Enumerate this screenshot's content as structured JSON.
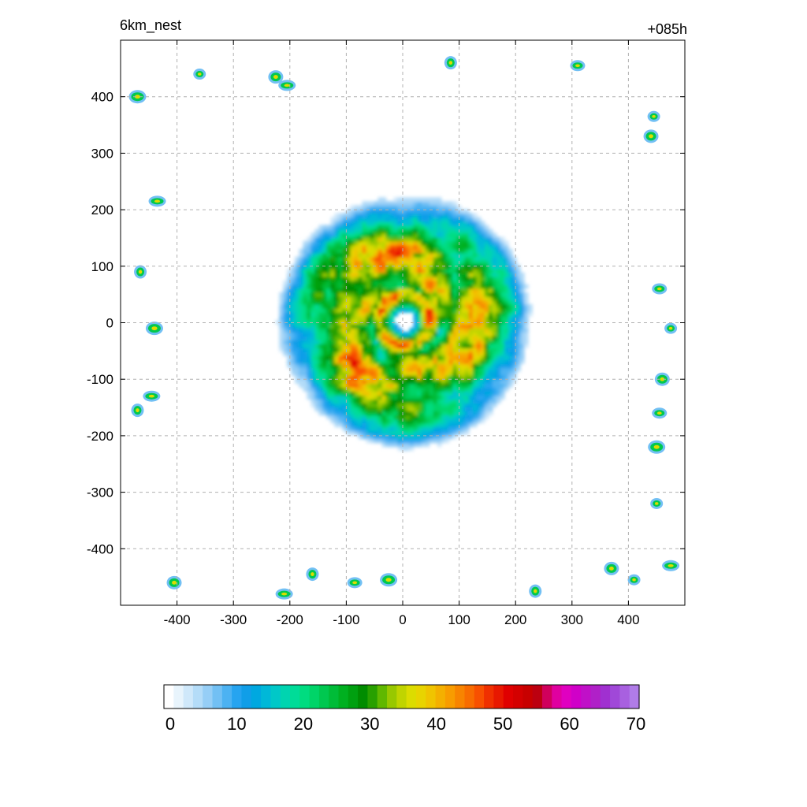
{
  "header": {
    "title_left": "6km_nest",
    "title_right": "+085h"
  },
  "chart_data": {
    "type": "heatmap",
    "title": "6km_nest",
    "subtitle": "+085h",
    "xlabel": "",
    "ylabel": "",
    "xlim": [
      -500,
      500
    ],
    "ylim": [
      -500,
      500
    ],
    "x_ticks": [
      -400,
      -300,
      -200,
      -100,
      0,
      100,
      200,
      300,
      400
    ],
    "y_ticks": [
      400,
      300,
      200,
      100,
      0,
      -100,
      -200,
      -300,
      -400
    ],
    "x_tick_labels": [
      "-400",
      "-300",
      "-200",
      "-100",
      "0",
      "100",
      "200",
      "300",
      "400"
    ],
    "y_tick_labels": [
      "400",
      "300",
      "200",
      "100",
      "0",
      "-100",
      "-200",
      "-300",
      "-400"
    ],
    "grid": true,
    "grid_style": "dashed",
    "colorbar": {
      "min": 0,
      "max": 70,
      "ticks": [
        0,
        10,
        20,
        30,
        40,
        50,
        60,
        70
      ],
      "tick_labels": [
        "0",
        "10",
        "20",
        "30",
        "40",
        "50",
        "60",
        "70"
      ],
      "orientation": "horizontal",
      "colors": [
        "#ffffff",
        "#e8f4fc",
        "#cfe8fa",
        "#b4dcf8",
        "#96cef6",
        "#72c0f4",
        "#4cb2f2",
        "#26a4f0",
        "#109ee8",
        "#00a8e0",
        "#00b8d8",
        "#00c8c8",
        "#00d4b0",
        "#00dc98",
        "#00dc80",
        "#00d468",
        "#00c850",
        "#00bc38",
        "#00b020",
        "#00a010",
        "#008c00",
        "#28a000",
        "#60b800",
        "#98c800",
        "#c0d400",
        "#dcdc00",
        "#e8d400",
        "#f0c400",
        "#f4b000",
        "#f89c00",
        "#f88400",
        "#f86c00",
        "#f85000",
        "#f03000",
        "#e81800",
        "#e00000",
        "#d40000",
        "#c80000",
        "#bc0010",
        "#d0005c",
        "#e000a0",
        "#e000c0",
        "#d000c8",
        "#c010c8",
        "#b020c8",
        "#a030d0",
        "#a048d8",
        "#a860e0",
        "#b07ce8"
      ]
    },
    "features": {
      "center": [
        0,
        0
      ],
      "eye_radius": 18,
      "rainbands": [
        {
          "center": [
            0,
            0
          ],
          "radius": 55,
          "max_value": 48
        },
        {
          "center": [
            -60,
            60
          ],
          "radius": 85,
          "max_value": 50
        },
        {
          "center": [
            70,
            -60
          ],
          "radius": 90,
          "max_value": 50
        },
        {
          "center": [
            -20,
            150
          ],
          "radius": 60,
          "max_value": 45
        },
        {
          "center": [
            150,
            20
          ],
          "radius": 70,
          "max_value": 45
        }
      ],
      "boundary_cells": [
        {
          "x": -360,
          "y": 440
        },
        {
          "x": -225,
          "y": 435
        },
        {
          "x": -205,
          "y": 420
        },
        {
          "x": 85,
          "y": 460
        },
        {
          "x": 310,
          "y": 455
        },
        {
          "x": -470,
          "y": 400
        },
        {
          "x": 445,
          "y": 365
        },
        {
          "x": 440,
          "y": 330
        },
        {
          "x": -435,
          "y": 215
        },
        {
          "x": -465,
          "y": 90
        },
        {
          "x": 455,
          "y": 60
        },
        {
          "x": -440,
          "y": -10
        },
        {
          "x": 475,
          "y": -10
        },
        {
          "x": 460,
          "y": -100
        },
        {
          "x": -445,
          "y": -130
        },
        {
          "x": -470,
          "y": -155
        },
        {
          "x": 455,
          "y": -160
        },
        {
          "x": 450,
          "y": -220
        },
        {
          "x": 450,
          "y": -320
        },
        {
          "x": -405,
          "y": -460
        },
        {
          "x": -210,
          "y": -480
        },
        {
          "x": -160,
          "y": -445
        },
        {
          "x": -85,
          "y": -460
        },
        {
          "x": -25,
          "y": -455
        },
        {
          "x": 410,
          "y": -455
        },
        {
          "x": 370,
          "y": -435
        },
        {
          "x": 475,
          "y": -430
        },
        {
          "x": 235,
          "y": -475
        }
      ]
    }
  }
}
